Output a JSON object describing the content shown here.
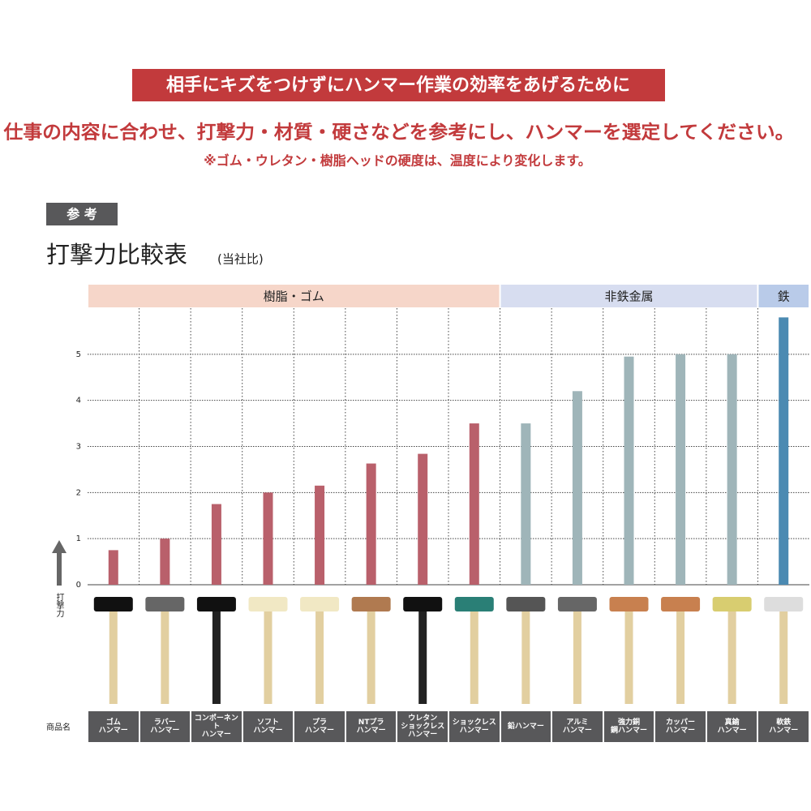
{
  "header": {
    "banner": "相手にキズをつけずにハンマー作業の効率をあげるために",
    "subtitle": "仕事の内容に合わせ、打撃力・材質・硬さなどを参考にし、ハンマーを選定してください。",
    "note": "※ゴム・ウレタン・樹脂ヘッドの硬度は、温度により変化します。",
    "badge": "参 考"
  },
  "chart_data": {
    "type": "bar",
    "title": "打撃力比較表",
    "title_note": "(当社比)",
    "y_label": "打撃力",
    "x_label": "商品名",
    "categories": [
      "ゴム\nハンマー",
      "ラバー\nハンマー",
      "コンポーネント\nハンマー",
      "ソフト\nハンマー",
      "プラ\nハンマー",
      "NTプラ\nハンマー",
      "ウレタン\nショックレス\nハンマー",
      "ショックレス\nハンマー",
      "鉛ハンマー",
      "アルミ\nハンマー",
      "強力銅\n鋼ハンマー",
      "カッパー\nハンマー",
      "真鍮\nハンマー",
      "軟鉄\nハンマー"
    ],
    "series": [
      {
        "name": "樹脂・ゴム",
        "color": "#b9606b",
        "header_color": "#f6d6c9",
        "values": [
          0.75,
          1.0,
          1.75,
          2.0,
          2.15,
          2.63,
          2.84,
          3.5,
          null,
          null,
          null,
          null,
          null,
          null
        ]
      },
      {
        "name": "非鉄金属",
        "color": "#9fb5b9",
        "header_color": "#d7ddf0",
        "values": [
          null,
          null,
          null,
          null,
          null,
          null,
          null,
          null,
          3.5,
          4.2,
          4.95,
          5.0,
          5.0,
          null
        ]
      },
      {
        "name": "鉄",
        "color": "#4b8ab2",
        "header_color": "#b9cbe9",
        "values": [
          null,
          null,
          null,
          null,
          null,
          null,
          null,
          null,
          null,
          null,
          null,
          null,
          null,
          5.8
        ]
      }
    ],
    "ylim": [
      0,
      6
    ],
    "yticks": [
      0,
      1,
      2,
      3,
      4,
      5
    ],
    "grid": true
  }
}
